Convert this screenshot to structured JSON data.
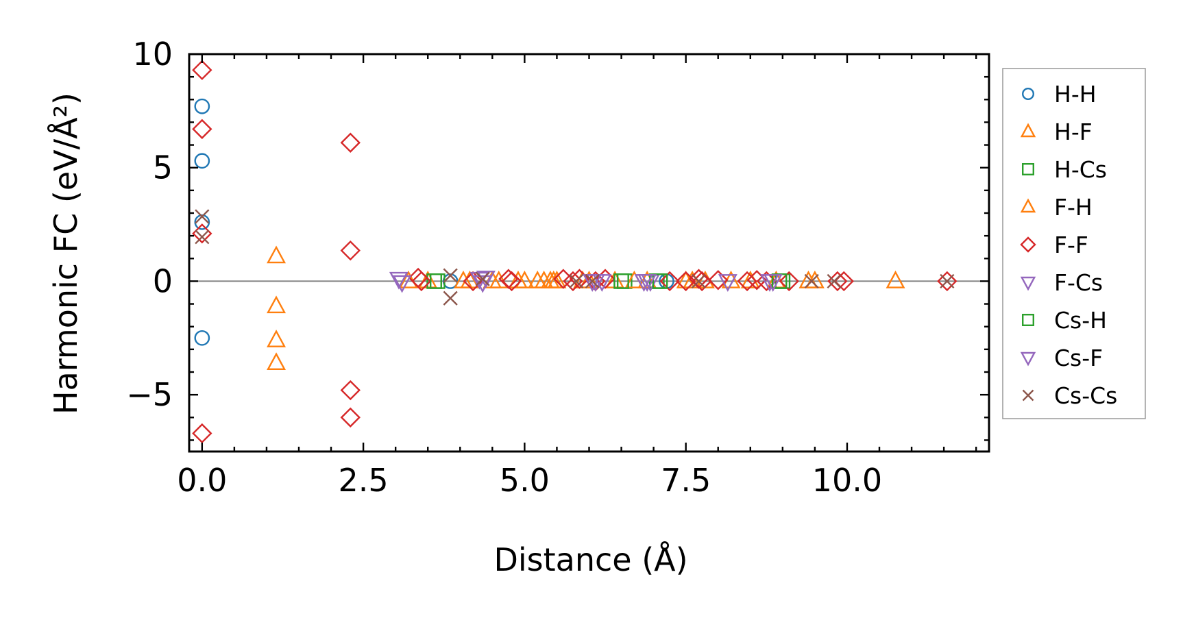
{
  "chart_data": {
    "type": "scatter",
    "xlabel": "Distance (Å)",
    "ylabel": "Harmonic FC (eV/Å²)",
    "xlim": [
      -0.2,
      12.2
    ],
    "ylim": [
      -7.5,
      10.0
    ],
    "x_ticks": [
      "0.0",
      "2.5",
      "5.0",
      "7.5",
      "10.0"
    ],
    "x_tick_values": [
      0.0,
      2.5,
      5.0,
      7.5,
      10.0
    ],
    "y_ticks": [
      "−5",
      "0",
      "5",
      "10"
    ],
    "y_tick_values": [
      -5,
      0,
      5,
      10
    ],
    "zero_line": true,
    "grid": false,
    "legend_position": "outside-right",
    "series": [
      {
        "name": "H-H",
        "marker": "circle",
        "color": "#1f77b4",
        "x": [
          0.0,
          0.0,
          0.0,
          0.0,
          3.85,
          7.2
        ],
        "y": [
          7.7,
          5.3,
          2.6,
          -2.5,
          0.0,
          0.0
        ]
      },
      {
        "name": "H-F",
        "marker": "triangle-up",
        "color": "#ff7f0e",
        "x": [
          1.15,
          1.15,
          1.15,
          1.15,
          3.2,
          3.5,
          4.05,
          4.5,
          4.9,
          5.0,
          5.3,
          5.4,
          5.5,
          5.9,
          6.4,
          6.9,
          7.5,
          7.8,
          8.5,
          8.9,
          9.4,
          10.75
        ],
        "y": [
          1.1,
          -1.1,
          -2.6,
          -3.6,
          0.0,
          0.0,
          0.0,
          0.0,
          0.0,
          0.0,
          0.0,
          0.0,
          0.0,
          0.0,
          0.0,
          0.0,
          0.0,
          0.0,
          0.0,
          0.0,
          0.0,
          0.0
        ]
      },
      {
        "name": "H-Cs",
        "marker": "square",
        "color": "#2ca02c",
        "x": [
          3.6,
          6.55,
          7.05,
          9.0
        ],
        "y": [
          0.0,
          0.0,
          0.0,
          0.0
        ]
      },
      {
        "name": "F-H",
        "marker": "triangle-up",
        "color": "#ff7f0e",
        "x": [
          4.15,
          4.6,
          5.2,
          5.45,
          6.0,
          6.7,
          7.6,
          8.2,
          9.5
        ],
        "y": [
          0.0,
          0.0,
          0.0,
          0.0,
          0.0,
          0.0,
          0.0,
          0.0,
          0.0
        ]
      },
      {
        "name": "F-F",
        "marker": "diamond",
        "color": "#d62728",
        "x": [
          0.0,
          0.0,
          0.0,
          0.0,
          2.3,
          2.3,
          2.3,
          2.3,
          3.35,
          3.4,
          4.2,
          4.75,
          4.8,
          5.6,
          5.75,
          5.85,
          6.1,
          6.25,
          7.25,
          7.5,
          7.7,
          7.75,
          8.0,
          8.45,
          8.6,
          8.75,
          9.1,
          9.85,
          9.95,
          11.55
        ],
        "y": [
          9.3,
          6.7,
          2.1,
          -6.7,
          6.1,
          1.35,
          -4.8,
          -6.0,
          0.15,
          0.0,
          0.0,
          0.1,
          0.0,
          0.1,
          0.0,
          0.1,
          0.0,
          0.1,
          0.0,
          0.0,
          0.1,
          0.0,
          0.05,
          0.0,
          0.05,
          0.0,
          0.0,
          0.0,
          0.0,
          0.0
        ]
      },
      {
        "name": "F-Cs",
        "marker": "triangle-down",
        "color": "#9467bd",
        "x": [
          3.05,
          4.3,
          4.4,
          6.05,
          6.2,
          6.85,
          6.95,
          8.15,
          8.8
        ],
        "y": [
          0.1,
          0.1,
          0.15,
          0.0,
          0.0,
          0.0,
          0.0,
          0.0,
          0.0
        ]
      },
      {
        "name": "Cs-H",
        "marker": "square",
        "color": "#2ca02c",
        "x": [
          3.65,
          6.5,
          7.1,
          8.95
        ],
        "y": [
          0.0,
          0.0,
          0.0,
          0.0
        ]
      },
      {
        "name": "Cs-F",
        "marker": "triangle-down",
        "color": "#9467bd",
        "x": [
          3.1,
          4.35,
          6.1,
          6.9,
          8.85
        ],
        "y": [
          -0.05,
          -0.05,
          0.0,
          0.0,
          0.0
        ]
      },
      {
        "name": "Cs-Cs",
        "marker": "x",
        "color": "#8c564b",
        "x": [
          0.0,
          0.0,
          3.85,
          3.85,
          4.35,
          5.8,
          6.05,
          7.7,
          9.45,
          9.8,
          11.55
        ],
        "y": [
          2.85,
          1.95,
          0.25,
          -0.75,
          0.1,
          0.0,
          0.0,
          0.0,
          0.0,
          0.0,
          0.0
        ]
      }
    ]
  }
}
